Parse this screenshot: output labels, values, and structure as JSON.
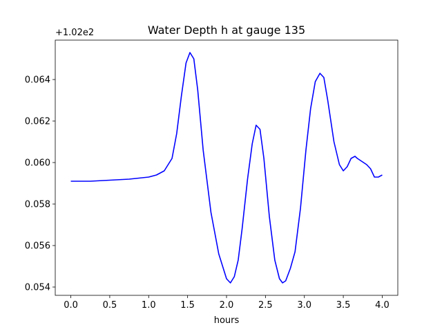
{
  "chart_data": {
    "type": "line",
    "title": "Water Depth h at gauge 135",
    "xlabel": "hours",
    "ylabel": "",
    "offset_label": "+1.02e2",
    "xlim": [
      -0.2,
      4.2
    ],
    "ylim": [
      0.0536,
      0.0659
    ],
    "x_ticks": [
      0.0,
      0.5,
      1.0,
      1.5,
      2.0,
      2.5,
      3.0,
      3.5,
      4.0
    ],
    "x_tick_labels": [
      "0.0",
      "0.5",
      "1.0",
      "1.5",
      "2.0",
      "2.5",
      "3.0",
      "3.5",
      "4.0"
    ],
    "y_ticks": [
      0.054,
      0.056,
      0.058,
      0.06,
      0.062,
      0.064
    ],
    "y_tick_labels": [
      "0.054",
      "0.056",
      "0.058",
      "0.060",
      "0.062",
      "0.064"
    ],
    "grid": false,
    "series": [
      {
        "color": "#0000ff",
        "x": [
          0.0,
          0.25,
          0.5,
          0.75,
          1.0,
          1.1,
          1.2,
          1.3,
          1.36,
          1.42,
          1.48,
          1.53,
          1.58,
          1.63,
          1.7,
          1.8,
          1.9,
          2.0,
          2.05,
          2.1,
          2.15,
          2.2,
          2.27,
          2.33,
          2.38,
          2.43,
          2.48,
          2.55,
          2.62,
          2.68,
          2.72,
          2.76,
          2.82,
          2.88,
          2.95,
          3.02,
          3.08,
          3.14,
          3.2,
          3.25,
          3.3,
          3.38,
          3.45,
          3.5,
          3.55,
          3.6,
          3.65,
          3.68,
          3.72,
          3.8,
          3.85,
          3.9,
          3.95,
          4.0
        ],
        "y": [
          0.0591,
          0.0591,
          0.05915,
          0.0592,
          0.0593,
          0.0594,
          0.0596,
          0.0602,
          0.0614,
          0.0632,
          0.0648,
          0.0653,
          0.065,
          0.0635,
          0.0606,
          0.0576,
          0.0556,
          0.0544,
          0.0542,
          0.0545,
          0.0553,
          0.0568,
          0.0592,
          0.0609,
          0.0618,
          0.0616,
          0.0602,
          0.0574,
          0.0553,
          0.0544,
          0.0542,
          0.0543,
          0.0549,
          0.0557,
          0.0578,
          0.0606,
          0.0626,
          0.0639,
          0.0643,
          0.0641,
          0.063,
          0.061,
          0.0599,
          0.0596,
          0.0598,
          0.0602,
          0.0603,
          0.0602,
          0.0601,
          0.0599,
          0.0597,
          0.0593,
          0.0593,
          0.0594
        ]
      }
    ]
  }
}
